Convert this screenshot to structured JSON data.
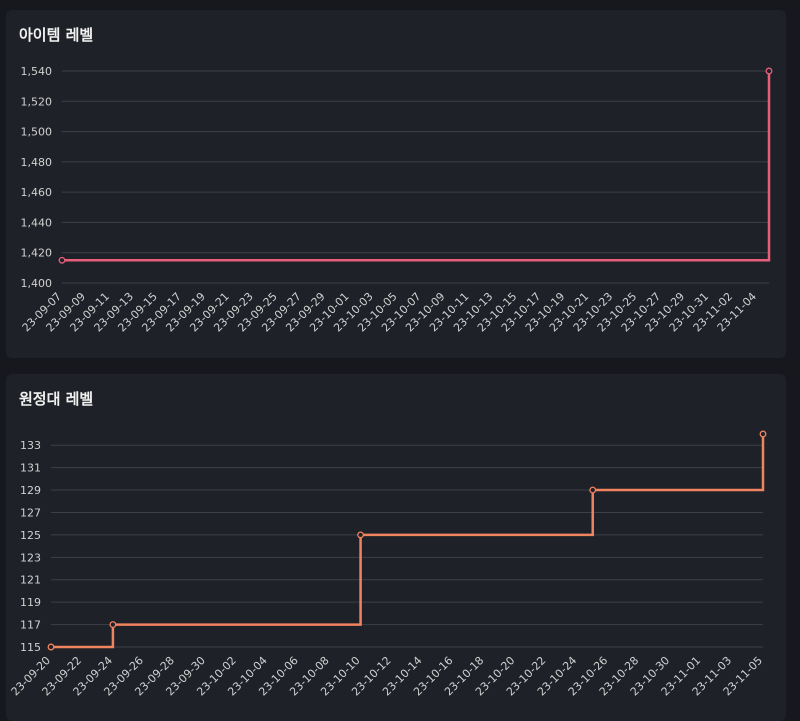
{
  "chart_data": [
    {
      "type": "line",
      "step": true,
      "title": "아이템 레벨",
      "color": "#e85f7b",
      "grid": true,
      "ylim": [
        1400,
        1540
      ],
      "yticks": [
        1400,
        1420,
        1440,
        1460,
        1480,
        1500,
        1520,
        1540
      ],
      "ytick_labels": [
        "1,400",
        "1,420",
        "1,440",
        "1,460",
        "1,480",
        "1,500",
        "1,520",
        "1,540"
      ],
      "xlim": [
        "2023-09-07",
        "2023-11-05"
      ],
      "xtick_labels": [
        "23-09-07",
        "23-09-09",
        "23-09-11",
        "23-09-13",
        "23-09-15",
        "23-09-17",
        "23-09-19",
        "23-09-21",
        "23-09-23",
        "23-09-25",
        "23-09-27",
        "23-09-29",
        "23-10-01",
        "23-10-03",
        "23-10-05",
        "23-10-07",
        "23-10-09",
        "23-10-11",
        "23-10-13",
        "23-10-15",
        "23-10-17",
        "23-10-19",
        "23-10-21",
        "23-10-23",
        "23-10-25",
        "23-10-27",
        "23-10-29",
        "23-10-31",
        "23-11-02",
        "23-11-04"
      ],
      "points": [
        {
          "x": "2023-09-07",
          "y": 1415
        },
        {
          "x": "2023-11-05",
          "y": 1540
        }
      ]
    },
    {
      "type": "line",
      "step": true,
      "title": "원정대 레벨",
      "color": "#f0845f",
      "grid": true,
      "ylim": [
        115,
        134
      ],
      "yticks": [
        115,
        117,
        119,
        121,
        123,
        125,
        127,
        129,
        131,
        133
      ],
      "ytick_labels": [
        "115",
        "117",
        "119",
        "121",
        "123",
        "125",
        "127",
        "129",
        "131",
        "133"
      ],
      "xlim": [
        "2023-09-20",
        "2023-11-05"
      ],
      "xtick_labels": [
        "23-09-20",
        "23-09-22",
        "23-09-24",
        "23-09-26",
        "23-09-28",
        "23-09-30",
        "23-10-02",
        "23-10-04",
        "23-10-06",
        "23-10-08",
        "23-10-10",
        "23-10-12",
        "23-10-14",
        "23-10-16",
        "23-10-18",
        "23-10-20",
        "23-10-22",
        "23-10-24",
        "23-10-26",
        "23-10-28",
        "23-10-30",
        "23-11-01",
        "23-11-03",
        "23-11-05"
      ],
      "points": [
        {
          "x": "2023-09-20",
          "y": 115
        },
        {
          "x": "2023-09-24",
          "y": 117
        },
        {
          "x": "2023-10-10",
          "y": 125
        },
        {
          "x": "2023-10-25",
          "y": 129
        },
        {
          "x": "2023-11-05",
          "y": 134
        }
      ]
    }
  ]
}
